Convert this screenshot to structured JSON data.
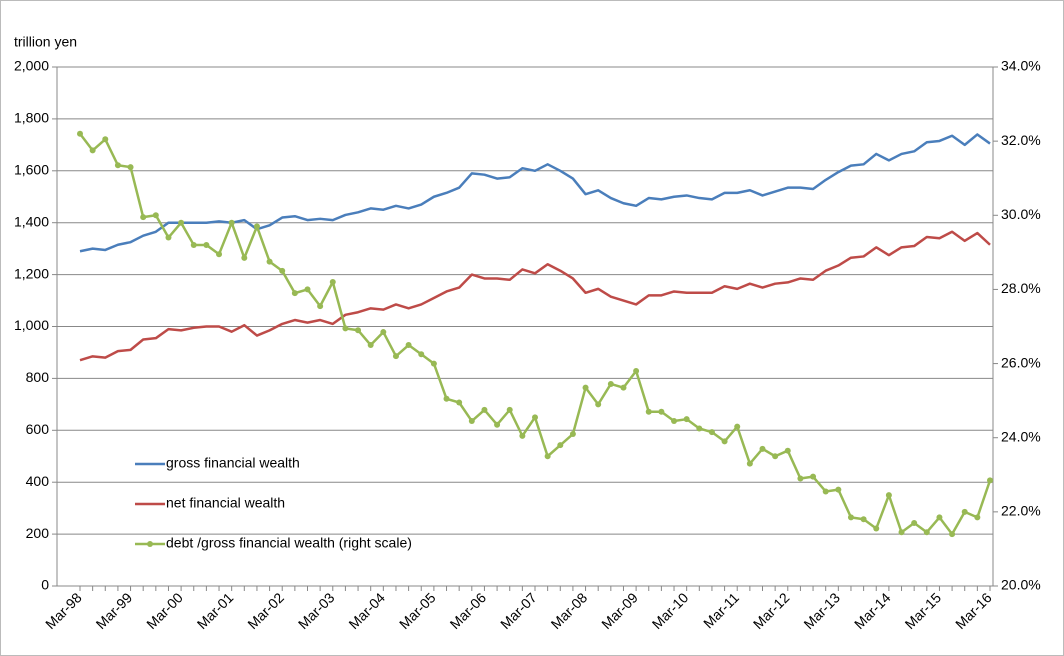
{
  "chart_data": {
    "type": "line",
    "y_axis_label": "trillion yen",
    "categories": [
      "Mar-98",
      null,
      null,
      null,
      "Mar-99",
      null,
      null,
      null,
      "Mar-00",
      null,
      null,
      null,
      "Mar-01",
      null,
      null,
      null,
      "Mar-02",
      null,
      null,
      null,
      "Mar-03",
      null,
      null,
      null,
      "Mar-04",
      null,
      null,
      null,
      "Mar-05",
      null,
      null,
      null,
      "Mar-06",
      null,
      null,
      null,
      "Mar-07",
      null,
      null,
      null,
      "Mar-08",
      null,
      null,
      null,
      "Mar-09",
      null,
      null,
      null,
      "Mar-10",
      null,
      null,
      null,
      "Mar-11",
      null,
      null,
      null,
      "Mar-12",
      null,
      null,
      null,
      "Mar-13",
      null,
      null,
      null,
      "Mar-14",
      null,
      null,
      null,
      "Mar-15",
      null,
      null,
      null,
      "Mar-16"
    ],
    "ylim": [
      0,
      2000
    ],
    "yticks": [
      0,
      200,
      400,
      600,
      800,
      {
        "value": 1000,
        "label": "1,000"
      },
      {
        "value": 1200,
        "label": "1,200"
      },
      {
        "value": 1400,
        "label": "1,400"
      },
      {
        "value": 1600,
        "label": "1,600"
      },
      {
        "value": 1800,
        "label": "1,800"
      },
      {
        "value": 2000,
        "label": "2,000"
      }
    ],
    "y2lim": [
      20,
      34
    ],
    "y2ticks": [
      {
        "value": 20,
        "label": "20.0%"
      },
      {
        "value": 22,
        "label": "22.0%"
      },
      {
        "value": 24,
        "label": "24.0%"
      },
      {
        "value": 26,
        "label": "26.0%"
      },
      {
        "value": 28,
        "label": "28.0%"
      },
      {
        "value": 30,
        "label": "30.0%"
      },
      {
        "value": 32,
        "label": "32.0%"
      },
      {
        "value": 34,
        "label": "34.0%"
      }
    ],
    "grid": true,
    "legend": "lower-left",
    "series": [
      {
        "name": "gross financial wealth",
        "color": "#4a7ebb",
        "values": [
          1290,
          1300,
          1295,
          1315,
          1325,
          1350,
          1365,
          1400,
          1400,
          1400,
          1400,
          1405,
          1400,
          1410,
          1375,
          1390,
          1420,
          1425,
          1410,
          1415,
          1410,
          1430,
          1440,
          1455,
          1450,
          1465,
          1455,
          1470,
          1500,
          1515,
          1535,
          1590,
          1585,
          1570,
          1575,
          1610,
          1600,
          1625,
          1600,
          1570,
          1510,
          1525,
          1495,
          1475,
          1465,
          1495,
          1490,
          1500,
          1505,
          1495,
          1490,
          1515,
          1515,
          1525,
          1505,
          1520,
          1535,
          1535,
          1530,
          1565,
          1595,
          1620,
          1625,
          1665,
          1640,
          1665,
          1675,
          1710,
          1715,
          1735,
          1700,
          1740,
          1705
        ]
      },
      {
        "name": "net financial wealth",
        "color": "#be4b48",
        "values": [
          870,
          885,
          880,
          905,
          910,
          950,
          955,
          990,
          985,
          995,
          1000,
          1000,
          980,
          1005,
          965,
          985,
          1010,
          1025,
          1015,
          1025,
          1010,
          1045,
          1055,
          1070,
          1065,
          1085,
          1070,
          1085,
          1110,
          1135,
          1150,
          1200,
          1185,
          1185,
          1180,
          1220,
          1205,
          1240,
          1215,
          1185,
          1130,
          1145,
          1115,
          1100,
          1085,
          1120,
          1120,
          1135,
          1130,
          1130,
          1130,
          1155,
          1145,
          1165,
          1150,
          1165,
          1170,
          1185,
          1180,
          1215,
          1235,
          1265,
          1270,
          1305,
          1275,
          1305,
          1310,
          1345,
          1340,
          1365,
          1330,
          1360,
          1315
        ]
      },
      {
        "name": "debt /gross financial wealth (right scale)",
        "color": "#98b954",
        "axis": "y2",
        "markers": true,
        "values": [
          32.2,
          31.75,
          32.05,
          31.35,
          31.3,
          29.95,
          30.0,
          29.4,
          29.8,
          29.2,
          29.2,
          28.95,
          29.8,
          28.85,
          29.7,
          28.75,
          28.5,
          27.9,
          28.0,
          27.55,
          28.2,
          26.95,
          26.9,
          26.5,
          26.85,
          26.2,
          26.5,
          26.25,
          26.0,
          25.05,
          24.95,
          24.45,
          24.75,
          24.35,
          24.75,
          24.05,
          24.55,
          23.5,
          23.8,
          24.1,
          25.35,
          24.9,
          25.45,
          25.35,
          25.8,
          24.7,
          24.7,
          24.45,
          24.5,
          24.25,
          24.15,
          23.9,
          24.3,
          23.3,
          23.7,
          23.5,
          23.65,
          22.9,
          22.95,
          22.55,
          22.6,
          21.85,
          21.8,
          21.55,
          22.45,
          21.45,
          21.7,
          21.45,
          21.85,
          21.4,
          22.0,
          21.85,
          22.85
        ]
      }
    ]
  }
}
